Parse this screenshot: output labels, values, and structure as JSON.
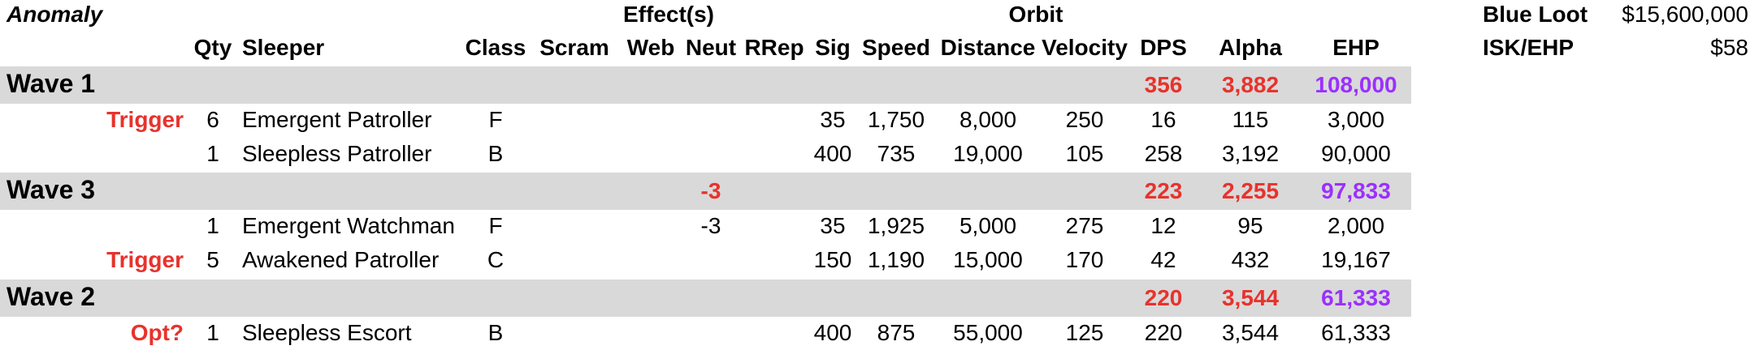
{
  "header": {
    "anomaly": "Anomaly",
    "effects": "Effect(s)",
    "orbit": "Orbit",
    "columns": {
      "qty": "Qty",
      "sleeper": "Sleeper",
      "class": "Class",
      "scram": "Scram",
      "web": "Web",
      "neut": "Neut",
      "rrep": "RRep",
      "sig": "Sig",
      "speed": "Speed",
      "distance": "Distance",
      "velocity": "Velocity",
      "dps": "DPS",
      "alpha": "Alpha",
      "ehp": "EHP"
    }
  },
  "summary": {
    "blue_loot_label": "Blue Loot",
    "blue_loot_value": "$15,600,000",
    "isk_ehp_label": "ISK/EHP",
    "isk_ehp_value": "$58"
  },
  "waves": [
    {
      "label": "Wave 1",
      "neut": "",
      "dps": "356",
      "alpha": "3,882",
      "ehp": "108,000",
      "rows": [
        {
          "note": "Trigger",
          "qty": "6",
          "sleeper": "Emergent Patroller",
          "class": "F",
          "neut": "",
          "sig": "35",
          "speed": "1,750",
          "distance": "8,000",
          "velocity": "250",
          "dps": "16",
          "alpha": "115",
          "ehp": "3,000"
        },
        {
          "note": "",
          "qty": "1",
          "sleeper": "Sleepless Patroller",
          "class": "B",
          "neut": "",
          "sig": "400",
          "speed": "735",
          "distance": "19,000",
          "velocity": "105",
          "dps": "258",
          "alpha": "3,192",
          "ehp": "90,000"
        }
      ]
    },
    {
      "label": "Wave 3",
      "neut": "-3",
      "dps": "223",
      "alpha": "2,255",
      "ehp": "97,833",
      "rows": [
        {
          "note": "",
          "qty": "1",
          "sleeper": "Emergent Watchman",
          "class": "F",
          "neut": "-3",
          "sig": "35",
          "speed": "1,925",
          "distance": "5,000",
          "velocity": "275",
          "dps": "12",
          "alpha": "95",
          "ehp": "2,000"
        },
        {
          "note": "Trigger",
          "qty": "5",
          "sleeper": "Awakened Patroller",
          "class": "C",
          "neut": "",
          "sig": "150",
          "speed": "1,190",
          "distance": "15,000",
          "velocity": "170",
          "dps": "42",
          "alpha": "432",
          "ehp": "19,167"
        }
      ]
    },
    {
      "label": "Wave 2",
      "neut": "",
      "dps": "220",
      "alpha": "3,544",
      "ehp": "61,333",
      "rows": [
        {
          "note": "Opt?",
          "qty": "1",
          "sleeper": "Sleepless Escort",
          "class": "B",
          "neut": "",
          "sig": "400",
          "speed": "875",
          "distance": "55,000",
          "velocity": "125",
          "dps": "220",
          "alpha": "3,544",
          "ehp": "61,333"
        }
      ]
    }
  ]
}
